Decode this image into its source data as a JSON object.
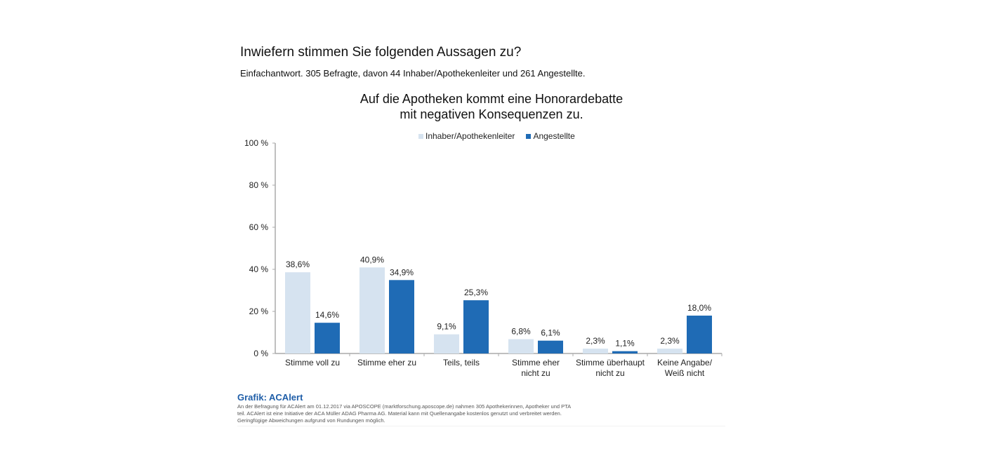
{
  "header": {
    "question": "Inwiefern stimmen Sie folgenden Aussagen zu?",
    "subtitle": "Einfachantwort. 305 Befragte, davon 44 Inhaber/Apothekenleiter und 261 Angestellte."
  },
  "footer": {
    "source_title": "Grafik: ACAlert",
    "note": "An der Befragung für ACAlert am 01.12.2017 via APOSCOPE (marktforschung.aposcope.de) nahmen 305 Apothekerinnen, Apotheker und PTA teil. ACAlert ist eine Initiative der ACA Müller ADAG Pharma AG. Material kann mit Quellenangabe kostenlos genutzt und verbreitet werden. Geringfügige Abweichungen aufgrund von Rundungen möglich."
  },
  "colors": {
    "series1": "#d6e3f0",
    "series2": "#1f6bb5",
    "axis": "#aaaaaa",
    "source_title": "#1f5ea8"
  },
  "chart_data": {
    "type": "bar",
    "title": "Auf die Apotheken kommt eine Honorardebatte mit negativen Konsequenzen zu.",
    "title_lines": [
      "Auf die Apotheken kommt eine Honorardebatte",
      "mit negativen Konsequenzen zu."
    ],
    "xlabel": "",
    "ylabel": "",
    "ylim": [
      0,
      100
    ],
    "yticks": [
      0,
      20,
      40,
      60,
      80,
      100
    ],
    "ytick_labels": [
      "0 %",
      "20 %",
      "40 %",
      "60 %",
      "80 %",
      "100 %"
    ],
    "grid": false,
    "legend_position": "top-center",
    "categories": [
      [
        "Stimme voll zu"
      ],
      [
        "Stimme eher zu"
      ],
      [
        "Teils, teils"
      ],
      [
        "Stimme eher",
        "nicht zu"
      ],
      [
        "Stimme überhaupt",
        "nicht zu"
      ],
      [
        "Keine Angabe/",
        "Weiß nicht"
      ]
    ],
    "series": [
      {
        "name": "Inhaber/Apothekenleiter",
        "values": [
          38.6,
          40.9,
          9.1,
          6.8,
          2.3,
          2.3
        ],
        "labels": [
          "38,6%",
          "40,9%",
          "9,1%",
          "6,8%",
          "2,3%",
          "2,3%"
        ]
      },
      {
        "name": "Angestellte",
        "values": [
          14.6,
          34.9,
          25.3,
          6.1,
          1.1,
          18.0
        ],
        "labels": [
          "14,6%",
          "34,9%",
          "25,3%",
          "6,1%",
          "1,1%",
          "18,0%"
        ]
      }
    ]
  }
}
